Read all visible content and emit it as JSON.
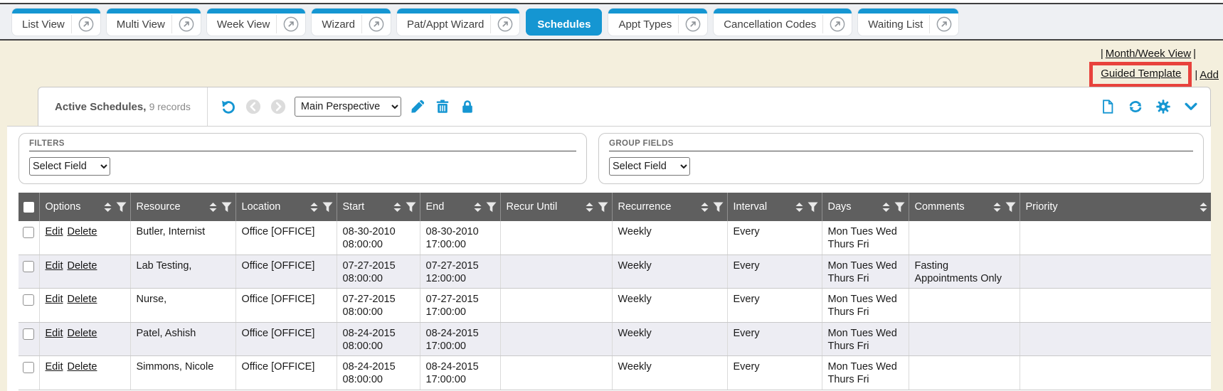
{
  "tabs": [
    {
      "label": "List View",
      "active": false
    },
    {
      "label": "Multi View",
      "active": false
    },
    {
      "label": "Week View",
      "active": false
    },
    {
      "label": "Wizard",
      "active": false
    },
    {
      "label": "Pat/Appt Wizard",
      "active": false
    },
    {
      "label": "Schedules",
      "active": true
    },
    {
      "label": "Appt Types",
      "active": false
    },
    {
      "label": "Cancellation Codes",
      "active": false
    },
    {
      "label": "Waiting List",
      "active": false
    }
  ],
  "header_links": {
    "pipe": "|",
    "month_week_view": "Month/Week View",
    "guided_template": "Guided Template",
    "add": "Add"
  },
  "annotation": {
    "type": "highlight-box",
    "around": "Guided Template",
    "color": "#e8423c"
  },
  "toolbar": {
    "title": "Active Schedules,",
    "record_count": "9 records",
    "perspective_selected": "Main Perspective",
    "left_icons": [
      "undo-icon",
      "prev-circle-icon",
      "next-circle-icon",
      "edit-pencil-icon",
      "delete-trash-icon",
      "lock-icon"
    ],
    "right_icons": [
      "new-document-icon",
      "refresh-icon",
      "settings-gear-icon",
      "collapse-chevron-icon"
    ]
  },
  "filters_panel": {
    "title": "FILTERS",
    "select_value": "Select Field"
  },
  "group_fields_panel": {
    "title": "GROUP FIELDS",
    "select_value": "Select Field"
  },
  "table": {
    "columns": [
      "Options",
      "Resource",
      "Location",
      "Start",
      "End",
      "Recur Until",
      "Recurrence",
      "Interval",
      "Days",
      "Comments",
      "Priority"
    ],
    "row_action_labels": [
      "Edit",
      "Delete"
    ],
    "rows": [
      {
        "resource": "Butler, Internist",
        "location": "Office [OFFICE]",
        "start_date": "08-30-2010",
        "start_time": "08:00:00",
        "end_date": "08-30-2010",
        "end_time": "17:00:00",
        "recur_until": "",
        "recurrence": "Weekly",
        "interval": "Every",
        "days": "Mon Tues Wed Thurs Fri",
        "comments": "",
        "priority": ""
      },
      {
        "resource": "Lab Testing,",
        "location": "Office [OFFICE]",
        "start_date": "07-27-2015",
        "start_time": "08:00:00",
        "end_date": "07-27-2015",
        "end_time": "12:00:00",
        "recur_until": "",
        "recurrence": "Weekly",
        "interval": "Every",
        "days": "Mon Tues Wed Thurs Fri",
        "comments": "Fasting Appointments Only",
        "priority": ""
      },
      {
        "resource": "Nurse,",
        "location": "Office [OFFICE]",
        "start_date": "07-27-2015",
        "start_time": "08:00:00",
        "end_date": "07-27-2015",
        "end_time": "17:00:00",
        "recur_until": "",
        "recurrence": "Weekly",
        "interval": "Every",
        "days": "Mon Tues Wed Thurs Fri",
        "comments": "",
        "priority": ""
      },
      {
        "resource": "Patel, Ashish",
        "location": "Office [OFFICE]",
        "start_date": "08-24-2015",
        "start_time": "08:00:00",
        "end_date": "08-24-2015",
        "end_time": "17:00:00",
        "recur_until": "",
        "recurrence": "Weekly",
        "interval": "Every",
        "days": "Mon Tues Wed Thurs Fri",
        "comments": "",
        "priority": ""
      },
      {
        "resource": "Simmons, Nicole",
        "location": "Office [OFFICE]",
        "start_date": "08-24-2015",
        "start_time": "08:00:00",
        "end_date": "08-24-2015",
        "end_time": "17:00:00",
        "recur_until": "",
        "recurrence": "Weekly",
        "interval": "Every",
        "days": "Mon Tues Wed Thurs Fri",
        "comments": "",
        "priority": ""
      }
    ]
  },
  "colors": {
    "accent_blue": "#1596d2",
    "table_header_bg": "#5f5f5f",
    "page_background_beige": "#f4efdd",
    "alt_row": "#ededf3",
    "annotation_red": "#e8423c"
  }
}
